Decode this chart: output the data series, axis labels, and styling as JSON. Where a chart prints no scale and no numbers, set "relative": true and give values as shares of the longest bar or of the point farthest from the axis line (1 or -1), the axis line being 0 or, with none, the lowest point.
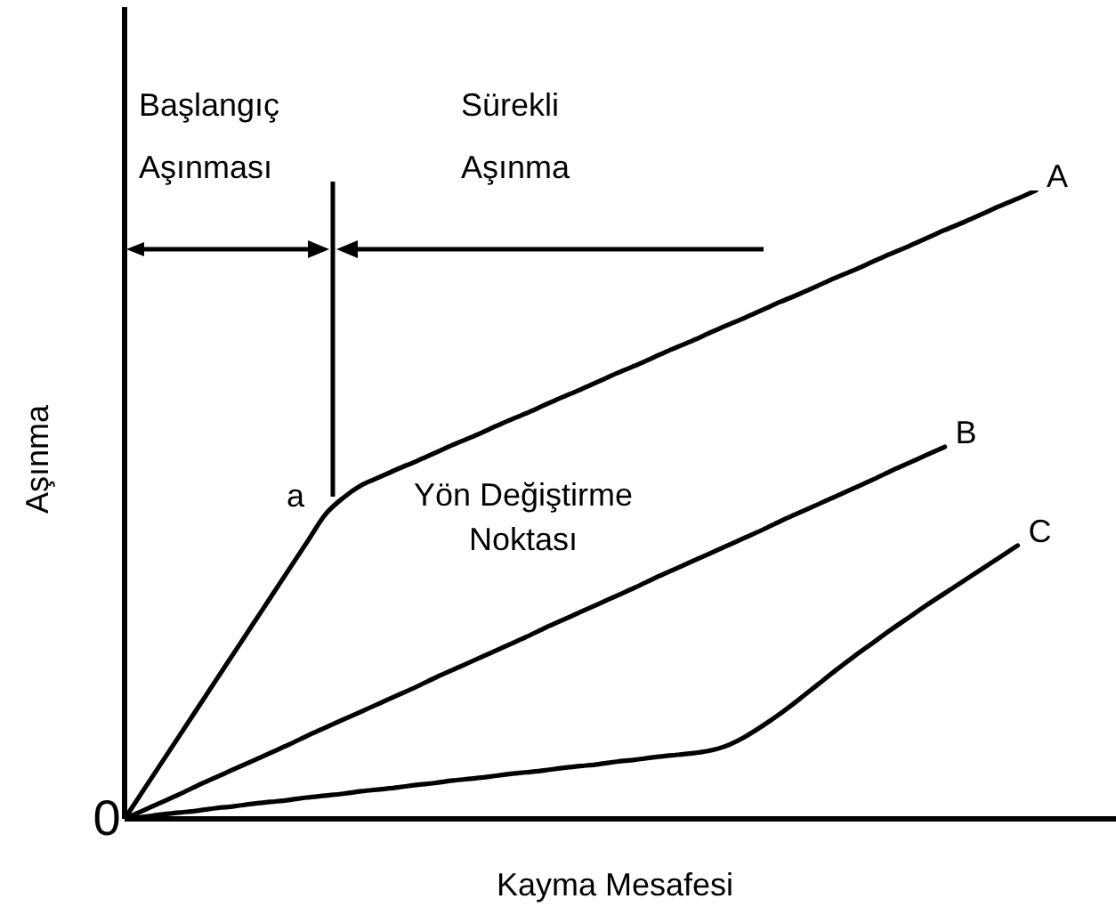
{
  "chart_data": {
    "type": "line",
    "relative": true,
    "xlabel": "Kayma Mesafesi",
    "ylabel": "Aşınma",
    "categories": [
      null,
      null,
      null,
      null,
      null,
      null,
      null,
      null,
      null,
      null,
      null,
      null,
      null,
      null,
      null,
      null,
      null,
      null,
      null,
      null,
      null,
      null,
      null,
      null,
      null,
      null,
      null,
      null,
      null,
      null,
      null,
      null,
      null,
      null,
      null,
      null,
      null,
      null,
      null,
      null,
      null,
      null,
      null,
      null,
      null,
      null,
      null,
      null,
      null,
      null,
      null
    ],
    "series": [
      {
        "name": "A",
        "color": "#000000",
        "values": [
          0,
          0.044,
          0.088,
          0.132,
          0.176,
          0.22,
          0.264,
          0.308,
          0.352,
          0.396,
          0.44,
          0.484,
          0.511,
          0.531,
          0.544,
          0.557,
          0.569,
          0.582,
          0.595,
          0.607,
          0.62,
          0.633,
          0.645,
          0.658,
          0.671,
          0.683,
          0.696,
          0.709,
          0.721,
          0.734,
          0.747,
          0.759,
          0.772,
          0.785,
          0.797,
          0.81,
          0.823,
          0.835,
          0.848,
          0.861,
          0.873,
          0.886,
          0.899,
          0.911,
          0.924,
          0.937,
          0.949,
          0.962,
          0.975,
          0.987,
          1
        ]
      },
      {
        "name": "B",
        "color": "#000000",
        "values": [
          0,
          0.013,
          0.026,
          0.039,
          0.053,
          0.066,
          0.079,
          0.092,
          0.105,
          0.118,
          0.132,
          0.145,
          0.158,
          0.171,
          0.184,
          0.197,
          0.21,
          0.224,
          0.237,
          0.25,
          0.263,
          0.276,
          0.289,
          0.303,
          0.316,
          0.329,
          0.342,
          0.355,
          0.368,
          0.382,
          0.395,
          0.408,
          0.421,
          0.434,
          0.447,
          0.46,
          0.474,
          0.487,
          0.5,
          0.513,
          0.526,
          0.539,
          0.553,
          0.566,
          0.579,
          0.592,
          null,
          null,
          null,
          null,
          null
        ]
      },
      {
        "name": "C",
        "color": "#000000",
        "values": [
          0,
          0.003,
          0.007,
          0.01,
          0.013,
          0.017,
          0.02,
          0.024,
          0.027,
          0.03,
          0.034,
          0.037,
          0.04,
          0.044,
          0.047,
          0.05,
          0.054,
          0.057,
          0.061,
          0.064,
          0.067,
          0.071,
          0.074,
          0.077,
          0.081,
          0.084,
          0.087,
          0.091,
          0.094,
          0.098,
          0.101,
          0.104,
          0.108,
          0.116,
          0.13,
          0.148,
          0.168,
          0.19,
          0.213,
          0.236,
          0.258,
          0.279,
          0.3,
          0.32,
          0.34,
          0.359,
          0.378,
          0.397,
          0.416,
          0.435,
          null
        ]
      }
    ],
    "annotations": [
      "Başlangıç Aşınması",
      "Sürekli Aşınma",
      "a",
      "Yön Değiştirme Noktası",
      "0"
    ],
    "legend": false,
    "marker": "none",
    "line_style": "solid"
  }
}
